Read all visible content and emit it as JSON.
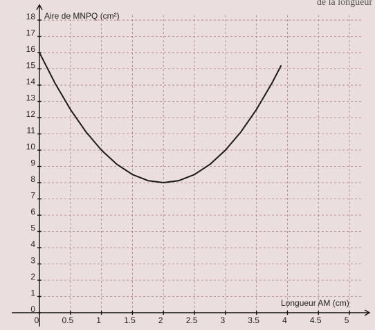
{
  "chart_data": {
    "type": "line",
    "corner_text": "de la longueur",
    "ylabel": "Aire de MNPQ (cm²)",
    "xlabel": "Longueur AM (cm)",
    "x": [
      0,
      0.25,
      0.5,
      0.75,
      1,
      1.25,
      1.5,
      1.75,
      2,
      2.25,
      2.5,
      2.75,
      3,
      3.25,
      3.5,
      3.75,
      3.9
    ],
    "series": [
      {
        "color": "#1a1a1a",
        "values": [
          16,
          14.125,
          12.5,
          11.125,
          10,
          9.125,
          8.5,
          8.125,
          8,
          8.125,
          8.5,
          9.125,
          10,
          11.125,
          12.5,
          14.125,
          15.22
        ]
      }
    ],
    "xlim": [
      0,
      5.2
    ],
    "ylim": [
      0,
      18.3
    ],
    "xticks": [
      0,
      0.5,
      1,
      1.5,
      2,
      2.5,
      3,
      3.5,
      4,
      4.5,
      5
    ],
    "yticks": [
      0,
      1,
      2,
      3,
      4,
      5,
      6,
      7,
      8,
      9,
      10,
      11,
      12,
      13,
      14,
      15,
      16,
      17,
      18
    ],
    "grid": true
  }
}
